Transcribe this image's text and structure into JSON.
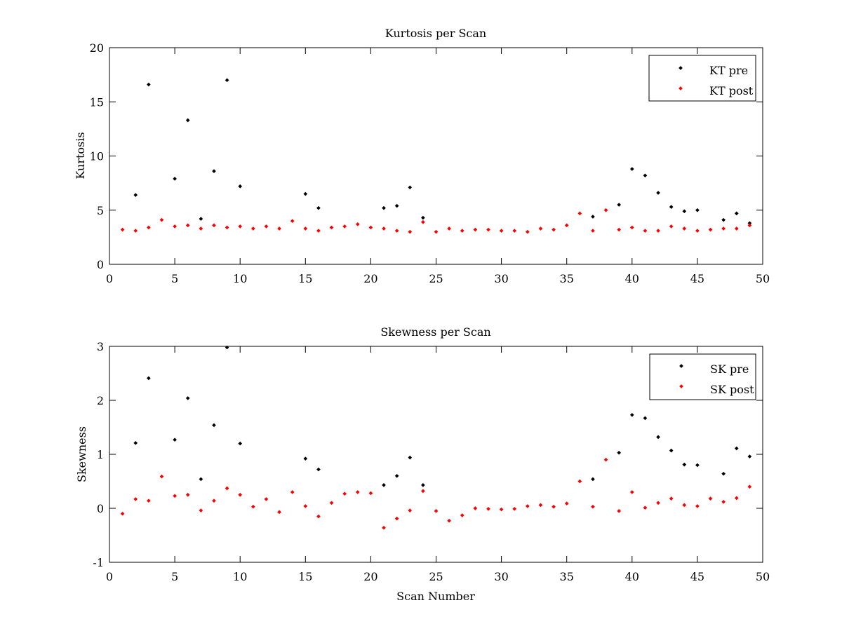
{
  "chart_data": [
    {
      "type": "scatter",
      "title": "Kurtosis per Scan",
      "xlabel": "",
      "ylabel": "Kurtosis",
      "xlim": [
        0,
        50
      ],
      "ylim": [
        0,
        20
      ],
      "xticks": [
        0,
        5,
        10,
        15,
        20,
        25,
        30,
        35,
        40,
        45,
        50
      ],
      "yticks": [
        0,
        5,
        10,
        15,
        20
      ],
      "grid": false,
      "legend_position": "top-right",
      "series": [
        {
          "name": "KT pre",
          "color": "#000000",
          "points": [
            [
              2,
              6.4
            ],
            [
              3,
              16.6
            ],
            [
              5,
              7.9
            ],
            [
              6,
              13.3
            ],
            [
              7,
              4.2
            ],
            [
              8,
              8.6
            ],
            [
              9,
              17.0
            ],
            [
              10,
              7.2
            ],
            [
              15,
              6.5
            ],
            [
              16,
              5.2
            ],
            [
              21,
              5.2
            ],
            [
              22,
              5.4
            ],
            [
              23,
              7.1
            ],
            [
              24,
              4.3
            ],
            [
              37,
              4.4
            ],
            [
              39,
              5.5
            ],
            [
              40,
              8.8
            ],
            [
              41,
              8.2
            ],
            [
              42,
              6.6
            ],
            [
              43,
              5.3
            ],
            [
              44,
              4.9
            ],
            [
              45,
              5.0
            ],
            [
              47,
              4.1
            ],
            [
              48,
              4.7
            ],
            [
              49,
              3.8
            ]
          ]
        },
        {
          "name": "KT post",
          "color": "#ff0000",
          "points": [
            [
              1,
              3.2
            ],
            [
              2,
              3.1
            ],
            [
              3,
              3.4
            ],
            [
              4,
              4.1
            ],
            [
              5,
              3.5
            ],
            [
              6,
              3.6
            ],
            [
              7,
              3.3
            ],
            [
              8,
              3.6
            ],
            [
              9,
              3.4
            ],
            [
              10,
              3.5
            ],
            [
              11,
              3.3
            ],
            [
              12,
              3.5
            ],
            [
              13,
              3.3
            ],
            [
              14,
              4.0
            ],
            [
              15,
              3.3
            ],
            [
              16,
              3.1
            ],
            [
              17,
              3.4
            ],
            [
              18,
              3.5
            ],
            [
              19,
              3.7
            ],
            [
              20,
              3.4
            ],
            [
              21,
              3.3
            ],
            [
              22,
              3.1
            ],
            [
              23,
              3.0
            ],
            [
              24,
              3.9
            ],
            [
              25,
              3.0
            ],
            [
              26,
              3.3
            ],
            [
              27,
              3.1
            ],
            [
              28,
              3.2
            ],
            [
              29,
              3.2
            ],
            [
              30,
              3.1
            ],
            [
              31,
              3.1
            ],
            [
              32,
              3.0
            ],
            [
              33,
              3.3
            ],
            [
              34,
              3.2
            ],
            [
              35,
              3.6
            ],
            [
              36,
              4.7
            ],
            [
              37,
              3.1
            ],
            [
              38,
              5.0
            ],
            [
              39,
              3.2
            ],
            [
              40,
              3.4
            ],
            [
              41,
              3.1
            ],
            [
              42,
              3.1
            ],
            [
              43,
              3.5
            ],
            [
              44,
              3.3
            ],
            [
              45,
              3.1
            ],
            [
              46,
              3.2
            ],
            [
              47,
              3.3
            ],
            [
              48,
              3.3
            ],
            [
              49,
              3.6
            ]
          ]
        }
      ]
    },
    {
      "type": "scatter",
      "title": "Skewness per Scan",
      "xlabel": "Scan Number",
      "ylabel": "Skewness",
      "xlim": [
        0,
        50
      ],
      "ylim": [
        -1,
        3
      ],
      "xticks": [
        0,
        5,
        10,
        15,
        20,
        25,
        30,
        35,
        40,
        45,
        50
      ],
      "yticks": [
        -1,
        0,
        1,
        2,
        3
      ],
      "grid": false,
      "legend_position": "top-right",
      "series": [
        {
          "name": "SK pre",
          "color": "#000000",
          "points": [
            [
              2,
              1.21
            ],
            [
              3,
              2.41
            ],
            [
              5,
              1.27
            ],
            [
              6,
              2.04
            ],
            [
              7,
              0.54
            ],
            [
              8,
              1.54
            ],
            [
              9,
              2.98
            ],
            [
              10,
              1.2
            ],
            [
              15,
              0.92
            ],
            [
              16,
              0.72
            ],
            [
              21,
              0.43
            ],
            [
              22,
              0.6
            ],
            [
              23,
              0.94
            ],
            [
              24,
              0.43
            ],
            [
              37,
              0.54
            ],
            [
              39,
              1.03
            ],
            [
              40,
              1.73
            ],
            [
              41,
              1.67
            ],
            [
              42,
              1.32
            ],
            [
              43,
              1.07
            ],
            [
              44,
              0.81
            ],
            [
              45,
              0.8
            ],
            [
              47,
              0.64
            ],
            [
              48,
              1.11
            ],
            [
              49,
              0.96
            ]
          ]
        },
        {
          "name": "SK post",
          "color": "#ff0000",
          "points": [
            [
              1,
              -0.1
            ],
            [
              2,
              0.17
            ],
            [
              3,
              0.14
            ],
            [
              4,
              0.59
            ],
            [
              5,
              0.23
            ],
            [
              6,
              0.25
            ],
            [
              7,
              -0.04
            ],
            [
              8,
              0.14
            ],
            [
              9,
              0.37
            ],
            [
              10,
              0.25
            ],
            [
              11,
              0.03
            ],
            [
              12,
              0.17
            ],
            [
              13,
              -0.07
            ],
            [
              14,
              0.3
            ],
            [
              15,
              0.04
            ],
            [
              16,
              -0.15
            ],
            [
              17,
              0.1
            ],
            [
              18,
              0.27
            ],
            [
              19,
              0.3
            ],
            [
              20,
              0.28
            ],
            [
              21,
              -0.36
            ],
            [
              22,
              -0.19
            ],
            [
              23,
              -0.04
            ],
            [
              24,
              0.32
            ],
            [
              25,
              -0.05
            ],
            [
              26,
              -0.23
            ],
            [
              27,
              -0.13
            ],
            [
              28,
              0.0
            ],
            [
              29,
              -0.01
            ],
            [
              30,
              -0.02
            ],
            [
              31,
              -0.01
            ],
            [
              32,
              0.04
            ],
            [
              33,
              0.06
            ],
            [
              34,
              0.03
            ],
            [
              35,
              0.09
            ],
            [
              36,
              0.5
            ],
            [
              37,
              0.03
            ],
            [
              38,
              0.9
            ],
            [
              39,
              -0.05
            ],
            [
              40,
              0.3
            ],
            [
              41,
              0.01
            ],
            [
              42,
              0.1
            ],
            [
              43,
              0.18
            ],
            [
              44,
              0.06
            ],
            [
              45,
              0.04
            ],
            [
              46,
              0.18
            ],
            [
              47,
              0.12
            ],
            [
              48,
              0.19
            ],
            [
              49,
              0.4
            ]
          ]
        }
      ]
    }
  ]
}
